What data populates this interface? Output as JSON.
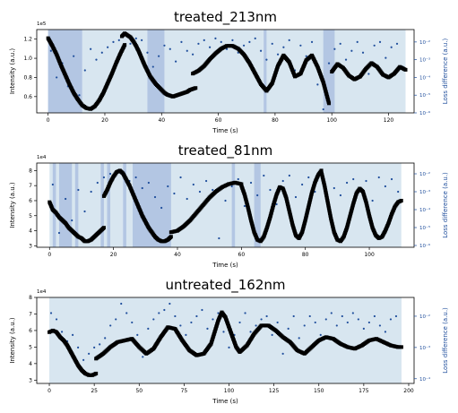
{
  "chart_data": [
    {
      "type": "scatter",
      "title": "treated_213nm",
      "xlabel": "Time (s)",
      "ylabel": "Intensity (a.u.)",
      "y2label": "Loss difference (a.u.)",
      "y_multiplier": "1e5",
      "xlim": [
        -4,
        129
      ],
      "xticks": [
        "0",
        "20",
        "40",
        "60",
        "80",
        "100",
        "120"
      ],
      "ylim": [
        0.43,
        1.3
      ],
      "yticks": [
        "0.6",
        "0.8",
        "1.0",
        "1.2"
      ],
      "y2_scale": "log",
      "y2lim": [
        -6,
        -1.3
      ],
      "y2ticks": [
        "10⁻⁶",
        "10⁻⁵",
        "10⁻⁴",
        "10⁻³",
        "10⁻²"
      ],
      "y2tick_values": [
        -6,
        -5,
        -4,
        -3,
        -2
      ],
      "band_range": [
        0,
        126
      ],
      "dark_bands": [
        [
          0,
          12
        ],
        [
          35,
          41
        ],
        [
          76,
          77
        ],
        [
          97,
          101
        ]
      ],
      "intensity_segments": [
        {
          "x": [
            0.0,
            1.5,
            3.0,
            4.5,
            6.0,
            7.5,
            9.0,
            10.5,
            12.0,
            13.5,
            15.0,
            16.5,
            18.0,
            19.5,
            21.0,
            22.5,
            24.0,
            25.5,
            27.0
          ],
          "y": [
            1.21,
            1.13,
            1.04,
            0.93,
            0.83,
            0.73,
            0.64,
            0.57,
            0.51,
            0.48,
            0.47,
            0.5,
            0.56,
            0.64,
            0.74,
            0.84,
            0.95,
            1.05,
            1.14
          ]
        },
        {
          "x": [
            26,
            27,
            28,
            29,
            30,
            31,
            32,
            33,
            34,
            35,
            36,
            37,
            38,
            39,
            40,
            41,
            42,
            43,
            44,
            45,
            46,
            47,
            48,
            49,
            50,
            51,
            52
          ],
          "y": [
            1.23,
            1.26,
            1.24,
            1.22,
            1.18,
            1.13,
            1.07,
            1.0,
            0.93,
            0.87,
            0.81,
            0.77,
            0.73,
            0.7,
            0.67,
            0.64,
            0.62,
            0.61,
            0.6,
            0.61,
            0.62,
            0.63,
            0.64,
            0.65,
            0.67,
            0.68,
            0.69
          ]
        },
        {
          "x": [
            51,
            53,
            55,
            57,
            59,
            61,
            63,
            65,
            67,
            69,
            71,
            73,
            75,
            77,
            79,
            81,
            83,
            85,
            87,
            89,
            91,
            93,
            95,
            97,
            99
          ],
          "y": [
            0.84,
            0.87,
            0.92,
            0.99,
            1.05,
            1.1,
            1.13,
            1.13,
            1.1,
            1.04,
            0.95,
            0.84,
            0.73,
            0.66,
            0.74,
            0.92,
            1.03,
            0.96,
            0.81,
            0.84,
            0.98,
            1.03,
            0.91,
            0.75,
            0.53
          ]
        },
        {
          "x": [
            100,
            102,
            104,
            106,
            108,
            110,
            112,
            114,
            116,
            118,
            120,
            122,
            124,
            126
          ],
          "y": [
            0.86,
            0.94,
            0.9,
            0.82,
            0.78,
            0.81,
            0.89,
            0.95,
            0.91,
            0.83,
            0.8,
            0.84,
            0.91,
            0.88
          ]
        }
      ],
      "loss_points": {
        "x": [
          1,
          3,
          5,
          7,
          9,
          11,
          13,
          15,
          17,
          19,
          21,
          23,
          25,
          27,
          29,
          31,
          33,
          35,
          37,
          39,
          41,
          43,
          45,
          47,
          49,
          51,
          53,
          55,
          57,
          59,
          61,
          63,
          65,
          67,
          69,
          71,
          73,
          75,
          77,
          79,
          81,
          83,
          85,
          87,
          89,
          91,
          93,
          95,
          97,
          99,
          101,
          103,
          105,
          107,
          109,
          111,
          113,
          115,
          117,
          119,
          121,
          123,
          125
        ],
        "y": [
          -2.5,
          -4.0,
          -3.2,
          -4.5,
          -2.8,
          -5.0,
          -3.6,
          -2.4,
          -3.0,
          -2.6,
          -2.3,
          -2.0,
          -1.9,
          -2.2,
          -2.1,
          -1.8,
          -1.9,
          -2.6,
          -3.4,
          -2.8,
          -2.2,
          -2.4,
          -3.1,
          -2.0,
          -2.5,
          -2.7,
          -2.1,
          -1.9,
          -2.3,
          -1.8,
          -2.0,
          -2.4,
          -1.9,
          -2.6,
          -2.2,
          -2.0,
          -1.8,
          -2.5,
          -3.0,
          -2.1,
          -2.7,
          -2.3,
          -1.9,
          -3.6,
          -2.2,
          -2.8,
          -2.0,
          -4.4,
          -5.8,
          -3.2,
          -2.4,
          -2.1,
          -3.0,
          -2.5,
          -2.0,
          -2.6,
          -3.8,
          -2.2,
          -2.0,
          -2.9,
          -2.3,
          -2.1,
          -3.4
        ]
      }
    },
    {
      "type": "scatter",
      "title": "treated_81nm",
      "xlabel": "Time (s)",
      "ylabel": "Intensity (a.u.)",
      "y2label": "Loss difference (a.u.)",
      "y_multiplier": "1e4",
      "xlim": [
        -4,
        114
      ],
      "xticks": [
        "0",
        "20",
        "40",
        "60",
        "80",
        "100"
      ],
      "ylim": [
        2.9,
        8.5
      ],
      "yticks": [
        "3",
        "4",
        "5",
        "6",
        "7",
        "8"
      ],
      "y2_scale": "log",
      "y2lim": [
        -6.1,
        -1.4
      ],
      "y2ticks": [
        "10⁻⁶",
        "10⁻⁵",
        "10⁻⁴",
        "10⁻³",
        "10⁻²"
      ],
      "y2tick_values": [
        -6,
        -5,
        -4,
        -3,
        -2
      ],
      "band_range": [
        0,
        110
      ],
      "dark_bands": [
        [
          1,
          2
        ],
        [
          3,
          7
        ],
        [
          8,
          9
        ],
        [
          16,
          17
        ],
        [
          18,
          19
        ],
        [
          23,
          24
        ],
        [
          26,
          38
        ],
        [
          57,
          58
        ],
        [
          64,
          66
        ]
      ],
      "intensity_segments": [
        {
          "x": [
            0.0,
            1.0,
            2.0,
            3.0,
            4.0,
            5.0,
            6.0,
            7.0,
            8.0,
            9.0,
            10.0,
            11.0,
            12.0,
            13.0,
            14.0,
            15.0,
            16.0,
            17.0
          ],
          "y": [
            5.9,
            5.4,
            5.2,
            4.9,
            4.7,
            4.5,
            4.2,
            4.0,
            3.8,
            3.6,
            3.5,
            3.3,
            3.3,
            3.4,
            3.6,
            3.8,
            4.0,
            4.2
          ]
        },
        {
          "x": [
            17,
            18,
            19,
            20,
            21,
            22,
            23,
            24,
            25,
            26,
            27,
            28,
            29,
            30,
            31,
            32,
            33,
            34,
            35,
            36,
            37,
            38
          ],
          "y": [
            6.3,
            6.7,
            7.2,
            7.6,
            7.9,
            8.0,
            7.8,
            7.4,
            7.0,
            6.5,
            6.0,
            5.5,
            5.0,
            4.6,
            4.2,
            3.9,
            3.6,
            3.4,
            3.3,
            3.3,
            3.4,
            3.6
          ]
        },
        {
          "x": [
            38,
            40,
            42,
            44,
            46,
            48,
            50,
            52,
            54,
            56,
            58,
            60
          ],
          "y": [
            3.9,
            4.0,
            4.3,
            4.7,
            5.2,
            5.7,
            6.2,
            6.6,
            6.9,
            7.1,
            7.2,
            7.1
          ]
        },
        {
          "x": [
            60,
            61,
            62,
            63,
            64,
            65,
            66,
            67,
            68,
            69,
            70,
            71,
            72,
            73,
            74,
            75,
            76,
            77,
            78,
            79,
            80,
            81,
            82,
            83,
            84,
            85
          ],
          "y": [
            7.0,
            6.4,
            5.6,
            4.7,
            3.9,
            3.4,
            3.3,
            3.6,
            4.2,
            4.9,
            5.7,
            6.4,
            6.9,
            6.8,
            6.2,
            5.3,
            4.4,
            3.7,
            3.5,
            3.9,
            4.7,
            5.6,
            6.5,
            7.2,
            7.7,
            8.0
          ]
        },
        {
          "x": [
            85,
            86,
            87,
            88,
            89,
            90,
            91,
            92,
            93,
            94,
            95,
            96,
            97,
            98,
            99,
            100,
            101,
            102,
            103,
            104,
            105,
            106,
            107,
            108,
            109,
            110
          ],
          "y": [
            7.9,
            7.0,
            5.9,
            4.8,
            3.9,
            3.4,
            3.3,
            3.6,
            4.2,
            5.0,
            5.8,
            6.5,
            6.8,
            6.6,
            5.9,
            5.0,
            4.2,
            3.7,
            3.5,
            3.6,
            4.0,
            4.5,
            5.1,
            5.6,
            5.9,
            6.0
          ]
        }
      ],
      "loss_points": {
        "x": [
          1,
          3,
          5,
          7,
          9,
          11,
          13,
          15,
          17,
          19,
          21,
          23,
          25,
          27,
          29,
          31,
          33,
          35,
          37,
          39,
          41,
          43,
          45,
          47,
          49,
          51,
          53,
          55,
          57,
          59,
          61,
          63,
          65,
          67,
          69,
          71,
          73,
          75,
          77,
          79,
          81,
          83,
          85,
          87,
          89,
          91,
          93,
          95,
          97,
          99,
          101,
          103,
          105,
          107,
          109
        ],
        "y": [
          -2.6,
          -5.3,
          -3.4,
          -4.6,
          -2.9,
          -4.1,
          -3.0,
          -2.5,
          -2.2,
          -2.0,
          -1.9,
          -2.0,
          -2.4,
          -2.2,
          -2.8,
          -2.5,
          -3.3,
          -3.9,
          -2.7,
          -3.1,
          -2.2,
          -3.4,
          -2.6,
          -3.0,
          -2.4,
          -2.9,
          -5.6,
          -3.5,
          -2.7,
          -2.3,
          -3.8,
          -2.5,
          -3.2,
          -2.1,
          -2.9,
          -3.7,
          -2.4,
          -2.1,
          -3.3,
          -2.6,
          -2.2,
          -3.0,
          -2.0,
          -3.6,
          -2.8,
          -3.2,
          -2.5,
          -2.3,
          -2.9,
          -2.4,
          -3.5,
          -2.2,
          -2.7,
          -2.3,
          -3.0
        ]
      }
    },
    {
      "type": "scatter",
      "title": "untreated_162nm",
      "xlabel": "Time (s)",
      "ylabel": "Intensity (a.u.)",
      "y2label": "Loss difference (a.u.)",
      "y_multiplier": "1e4",
      "xlim": [
        -7,
        203
      ],
      "xticks": [
        "0",
        "25",
        "50",
        "75",
        "100",
        "125",
        "150",
        "175",
        "200"
      ],
      "ylim": [
        2.8,
        8.0
      ],
      "yticks": [
        "3",
        "4",
        "5",
        "6",
        "7",
        "8"
      ],
      "y2_scale": "log",
      "y2lim": [
        -4.15,
        -1.4
      ],
      "y2ticks": [
        "10⁻⁴",
        "10⁻³",
        "10⁻²"
      ],
      "y2tick_values": [
        -4,
        -3,
        -2
      ],
      "band_range": [
        0,
        196
      ],
      "dark_bands": [],
      "intensity_segments": [
        {
          "x": [
            0,
            2,
            4,
            6,
            8,
            10,
            12,
            14,
            16,
            18,
            20,
            22,
            24,
            26
          ],
          "y": [
            5.9,
            6.0,
            5.9,
            5.6,
            5.4,
            5.1,
            4.7,
            4.3,
            3.9,
            3.6,
            3.4,
            3.3,
            3.3,
            3.4
          ]
        },
        {
          "x": [
            26,
            30,
            34,
            38,
            42,
            46,
            50,
            54,
            58,
            62,
            66,
            70,
            74,
            78,
            82,
            86,
            90,
            94,
            96,
            98,
            100,
            102,
            104,
            106,
            110,
            114,
            118,
            122,
            126,
            130,
            134,
            138,
            142,
            146,
            150,
            154,
            158,
            162,
            166,
            170,
            174,
            178,
            182,
            186,
            190,
            194,
            196
          ],
          "y": [
            4.3,
            4.6,
            5.0,
            5.3,
            5.4,
            5.5,
            5.0,
            4.6,
            4.9,
            5.6,
            6.2,
            6.1,
            5.4,
            4.8,
            4.5,
            4.6,
            5.2,
            6.6,
            7.1,
            6.8,
            6.2,
            5.6,
            5.0,
            4.7,
            5.1,
            5.8,
            6.3,
            6.3,
            6.0,
            5.6,
            5.3,
            4.8,
            4.6,
            5.0,
            5.4,
            5.6,
            5.5,
            5.2,
            5.0,
            4.9,
            5.1,
            5.4,
            5.5,
            5.3,
            5.1,
            5.0,
            5.0
          ]
        }
      ],
      "loss_points": {
        "x": [
          1,
          4,
          7,
          10,
          13,
          16,
          19,
          22,
          25,
          28,
          31,
          34,
          37,
          40,
          43,
          46,
          49,
          52,
          55,
          58,
          61,
          64,
          67,
          70,
          73,
          76,
          79,
          82,
          85,
          88,
          91,
          94,
          97,
          100,
          103,
          106,
          109,
          112,
          115,
          118,
          121,
          124,
          127,
          130,
          133,
          136,
          139,
          142,
          145,
          148,
          151,
          154,
          157,
          160,
          163,
          166,
          169,
          172,
          175,
          178,
          181,
          184,
          187,
          190,
          193
        ],
        "y": [
          -1.9,
          -2.1,
          -2.5,
          -2.8,
          -2.6,
          -3.0,
          -3.4,
          -3.2,
          -3.0,
          -2.9,
          -2.7,
          -2.3,
          -2.1,
          -1.6,
          -1.9,
          -2.2,
          -2.6,
          -3.3,
          -2.4,
          -2.1,
          -1.9,
          -1.8,
          -1.6,
          -2.0,
          -2.3,
          -2.6,
          -2.2,
          -2.0,
          -1.8,
          -2.4,
          -2.1,
          -1.9,
          -2.5,
          -3.0,
          -2.6,
          -2.2,
          -1.9,
          -2.5,
          -2.3,
          -2.1,
          -2.0,
          -2.6,
          -2.2,
          -3.2,
          -2.4,
          -2.0,
          -2.7,
          -2.3,
          -2.0,
          -2.2,
          -2.6,
          -2.1,
          -1.9,
          -2.3,
          -2.0,
          -2.2,
          -1.9,
          -2.1,
          -2.4,
          -2.2,
          -2.0,
          -2.3,
          -2.5,
          -2.1,
          -2.0
        ]
      }
    }
  ],
  "colors": {
    "band_light": "#d8e6f0",
    "band_dark": "#b3c6e3",
    "intensity_points": "#000000",
    "loss_points": "#1f4e9c",
    "right_axis_text": "#1f4e9c"
  }
}
